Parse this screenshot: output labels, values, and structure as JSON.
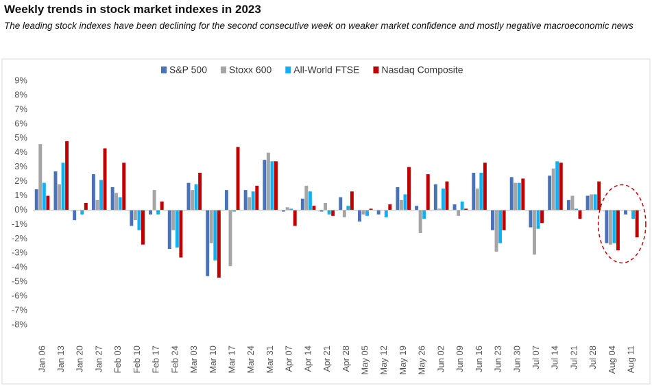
{
  "chart_data": {
    "type": "bar",
    "title": "Weekly trends in stock market indexes in 2023",
    "subtitle": "The leading stock indexes have been declining for the second consecutive week on weaker market confidence and mostly negative macroeconomic news",
    "categories": [
      "Jan 06",
      "Jan 13",
      "Jan 20",
      "Jan 27",
      "Feb 03",
      "Feb 10",
      "Feb 17",
      "Feb 24",
      "Mar 03",
      "Mar 10",
      "Mar 17",
      "Mar 24",
      "Mar 31",
      "Apr 07",
      "Apr 14",
      "Apr 21",
      "Apr 28",
      "May 05",
      "May 12",
      "May 19",
      "May 26",
      "Jun 02",
      "Jun 09",
      "Jun 16",
      "Jun 23",
      "Jun 30",
      "Jul 07",
      "Jul 14",
      "Jul 21",
      "Jul 28",
      "Aug 04",
      "Aug 11"
    ],
    "series": [
      {
        "name": "S&P 500",
        "color": "#4a72b8",
        "values": [
          1.45,
          2.7,
          -0.7,
          2.5,
          1.6,
          -1.1,
          -0.3,
          -2.7,
          1.9,
          -4.6,
          1.4,
          1.4,
          3.5,
          -0.1,
          0.8,
          -0.1,
          0.9,
          -0.8,
          -0.3,
          1.6,
          0.3,
          1.8,
          0.4,
          2.6,
          -1.4,
          2.3,
          -1.2,
          2.4,
          0.7,
          1.0,
          -2.3,
          -0.3
        ]
      },
      {
        "name": "Stoxx 600",
        "color": "#a5a5a5",
        "values": [
          4.6,
          1.8,
          0,
          0.7,
          1.2,
          -0.7,
          1.4,
          -1.4,
          1.4,
          -2.3,
          -3.9,
          0.9,
          4.0,
          0.2,
          1.7,
          0.5,
          -0.5,
          -0.3,
          0,
          0.7,
          -1.6,
          0.1,
          -0.4,
          1.5,
          -2.9,
          1.9,
          -3.1,
          2.9,
          1.0,
          1.1,
          -2.4,
          0
        ]
      },
      {
        "name": "All-World FTSE",
        "color": "#12b0ef",
        "values": [
          1.9,
          3.3,
          -0.3,
          2.1,
          0.9,
          -1.4,
          -0.3,
          -2.6,
          1.8,
          -3.5,
          -0.1,
          1.3,
          3.4,
          0.1,
          1.3,
          -0.3,
          0.3,
          -0.4,
          -0.5,
          1.1,
          -0.6,
          1.5,
          0.6,
          2.6,
          -2.3,
          1.9,
          -1.3,
          3.4,
          0.1,
          1.1,
          -2.3,
          -0.6
        ]
      },
      {
        "name": "Nasdaq Composite",
        "color": "#c00000",
        "values": [
          1.0,
          4.8,
          0.5,
          4.3,
          3.3,
          -2.4,
          0.6,
          -3.3,
          2.6,
          -4.7,
          4.4,
          1.7,
          3.4,
          -1.1,
          0.3,
          -0.4,
          1.3,
          0.1,
          0.4,
          3.0,
          2.5,
          2.0,
          0.1,
          3.3,
          -1.4,
          2.2,
          -0.9,
          3.3,
          -0.6,
          2.0,
          -2.8,
          -1.9
        ]
      }
    ],
    "ylim": [
      -8,
      9
    ],
    "yticks": [
      {
        "value": -8,
        "label": "-8%"
      },
      {
        "value": -7,
        "label": "-7%"
      },
      {
        "value": -6,
        "label": "-6%"
      },
      {
        "value": -5,
        "label": "-5%"
      },
      {
        "value": -4,
        "label": "-4%"
      },
      {
        "value": -3,
        "label": "-3%"
      },
      {
        "value": -2,
        "label": "-2%"
      },
      {
        "value": -1,
        "label": "-1%"
      },
      {
        "value": 0,
        "label": "0%"
      },
      {
        "value": 1,
        "label": "1%"
      },
      {
        "value": 2,
        "label": "2%"
      },
      {
        "value": 3,
        "label": "3%"
      },
      {
        "value": 4,
        "label": "4%"
      },
      {
        "value": 5,
        "label": "5%"
      },
      {
        "value": 6,
        "label": "6%"
      },
      {
        "value": 7,
        "label": "7%"
      },
      {
        "value": 8,
        "label": "8%"
      },
      {
        "value": 9,
        "label": "9%"
      }
    ],
    "grid": false,
    "legend": "top"
  }
}
